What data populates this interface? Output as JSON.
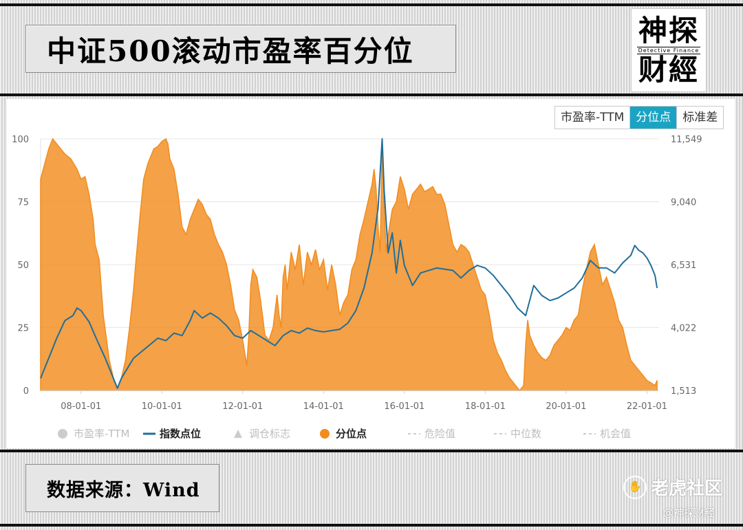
{
  "header": {
    "title": "中证500滚动市盈率百分位"
  },
  "logo": {
    "line1": "神探",
    "line2": "Detective Finance",
    "line3": "财經"
  },
  "tabs": [
    "市盈率-TTM",
    "分位点",
    "标准差"
  ],
  "active_tab": 1,
  "footer": {
    "source": "数据来源：Wind"
  },
  "watermark": {
    "brand": "老虎社区",
    "author": "@神探财经",
    "icon": "tiger-paw-icon"
  },
  "chart_data": {
    "type": "area",
    "x_ticks": [
      "08-01-01",
      "10-01-01",
      "12-01-01",
      "14-01-01",
      "16-01-01",
      "18-01-01",
      "20-01-01",
      "22-01-01"
    ],
    "y_left": {
      "ticks": [
        0,
        25,
        50,
        75,
        100
      ],
      "range": [
        0,
        100
      ]
    },
    "y_right": {
      "ticks": [
        "1,513",
        "4,022",
        "6,531",
        "9,040",
        "11,549"
      ],
      "range": [
        1513,
        11549
      ]
    },
    "legend": [
      {
        "name": "市盈率-TTM",
        "symbol": "circle",
        "color": "#cccccc"
      },
      {
        "name": "指数点位",
        "symbol": "line",
        "color": "#1f6e9a"
      },
      {
        "name": "调仓标志",
        "symbol": "triangle",
        "color": "#cccccc"
      },
      {
        "name": "分位点",
        "symbol": "circle",
        "color": "#f28c1e"
      },
      {
        "name": "危险值",
        "symbol": "dash",
        "color": "#cccccc"
      },
      {
        "name": "中位数",
        "symbol": "dash",
        "color": "#cccccc"
      },
      {
        "name": "机会值",
        "symbol": "dash",
        "color": "#cccccc"
      }
    ],
    "colors": {
      "percentile": "#f28c1e",
      "index": "#1f6e9a",
      "grid": "#e6e6e6"
    },
    "series": [
      {
        "name": "分位点",
        "axis": "left",
        "points": [
          [
            2007.0,
            84
          ],
          [
            2007.1,
            90
          ],
          [
            2007.2,
            96
          ],
          [
            2007.3,
            100
          ],
          [
            2007.45,
            97
          ],
          [
            2007.6,
            94
          ],
          [
            2007.75,
            92
          ],
          [
            2007.9,
            88
          ],
          [
            2008.0,
            84
          ],
          [
            2008.1,
            85
          ],
          [
            2008.2,
            78
          ],
          [
            2008.3,
            68
          ],
          [
            2008.35,
            58
          ],
          [
            2008.45,
            52
          ],
          [
            2008.55,
            30
          ],
          [
            2008.7,
            12
          ],
          [
            2008.8,
            5
          ],
          [
            2008.9,
            1
          ],
          [
            2009.0,
            5
          ],
          [
            2009.1,
            12
          ],
          [
            2009.2,
            25
          ],
          [
            2009.3,
            40
          ],
          [
            2009.35,
            50
          ],
          [
            2009.45,
            68
          ],
          [
            2009.55,
            84
          ],
          [
            2009.65,
            90
          ],
          [
            2009.8,
            96
          ],
          [
            2009.9,
            97
          ],
          [
            2010.0,
            99
          ],
          [
            2010.1,
            100
          ],
          [
            2010.15,
            98
          ],
          [
            2010.2,
            92
          ],
          [
            2010.3,
            88
          ],
          [
            2010.4,
            78
          ],
          [
            2010.5,
            65
          ],
          [
            2010.6,
            62
          ],
          [
            2010.7,
            68
          ],
          [
            2010.8,
            72
          ],
          [
            2010.9,
            76
          ],
          [
            2011.0,
            74
          ],
          [
            2011.1,
            70
          ],
          [
            2011.2,
            68
          ],
          [
            2011.3,
            62
          ],
          [
            2011.4,
            58
          ],
          [
            2011.5,
            55
          ],
          [
            2011.6,
            50
          ],
          [
            2011.7,
            42
          ],
          [
            2011.8,
            32
          ],
          [
            2011.9,
            28
          ],
          [
            2012.0,
            20
          ],
          [
            2012.1,
            10
          ],
          [
            2012.15,
            22
          ],
          [
            2012.2,
            42
          ],
          [
            2012.25,
            48
          ],
          [
            2012.35,
            45
          ],
          [
            2012.45,
            35
          ],
          [
            2012.55,
            22
          ],
          [
            2012.65,
            20
          ],
          [
            2012.75,
            25
          ],
          [
            2012.85,
            38
          ],
          [
            2012.9,
            30
          ],
          [
            2012.95,
            25
          ],
          [
            2013.0,
            45
          ],
          [
            2013.05,
            50
          ],
          [
            2013.1,
            40
          ],
          [
            2013.2,
            55
          ],
          [
            2013.3,
            48
          ],
          [
            2013.4,
            58
          ],
          [
            2013.5,
            42
          ],
          [
            2013.6,
            55
          ],
          [
            2013.7,
            50
          ],
          [
            2013.8,
            56
          ],
          [
            2013.9,
            48
          ],
          [
            2014.0,
            52
          ],
          [
            2014.1,
            40
          ],
          [
            2014.2,
            50
          ],
          [
            2014.3,
            42
          ],
          [
            2014.4,
            30
          ],
          [
            2014.5,
            35
          ],
          [
            2014.6,
            38
          ],
          [
            2014.7,
            48
          ],
          [
            2014.8,
            52
          ],
          [
            2014.9,
            62
          ],
          [
            2015.0,
            68
          ],
          [
            2015.1,
            75
          ],
          [
            2015.2,
            82
          ],
          [
            2015.25,
            88
          ],
          [
            2015.3,
            80
          ],
          [
            2015.35,
            65
          ],
          [
            2015.4,
            55
          ],
          [
            2015.45,
            100
          ],
          [
            2015.5,
            72
          ],
          [
            2015.55,
            55
          ],
          [
            2015.6,
            62
          ],
          [
            2015.7,
            72
          ],
          [
            2015.8,
            75
          ],
          [
            2015.9,
            85
          ],
          [
            2016.0,
            80
          ],
          [
            2016.1,
            72
          ],
          [
            2016.2,
            78
          ],
          [
            2016.3,
            80
          ],
          [
            2016.4,
            82
          ],
          [
            2016.5,
            79
          ],
          [
            2016.6,
            80
          ],
          [
            2016.7,
            81
          ],
          [
            2016.8,
            78
          ],
          [
            2016.9,
            78
          ],
          [
            2017.0,
            74
          ],
          [
            2017.1,
            66
          ],
          [
            2017.2,
            58
          ],
          [
            2017.3,
            55
          ],
          [
            2017.4,
            58
          ],
          [
            2017.5,
            57
          ],
          [
            2017.6,
            55
          ],
          [
            2017.7,
            50
          ],
          [
            2017.8,
            45
          ],
          [
            2017.9,
            40
          ],
          [
            2018.0,
            38
          ],
          [
            2018.1,
            30
          ],
          [
            2018.2,
            20
          ],
          [
            2018.3,
            15
          ],
          [
            2018.4,
            12
          ],
          [
            2018.5,
            8
          ],
          [
            2018.6,
            5
          ],
          [
            2018.7,
            3
          ],
          [
            2018.8,
            1
          ],
          [
            2018.85,
            0
          ],
          [
            2018.95,
            2
          ],
          [
            2019.0,
            18
          ],
          [
            2019.05,
            28
          ],
          [
            2019.1,
            22
          ],
          [
            2019.2,
            18
          ],
          [
            2019.3,
            15
          ],
          [
            2019.4,
            13
          ],
          [
            2019.5,
            12
          ],
          [
            2019.6,
            14
          ],
          [
            2019.7,
            18
          ],
          [
            2019.8,
            20
          ],
          [
            2019.9,
            22
          ],
          [
            2020.0,
            25
          ],
          [
            2020.1,
            24
          ],
          [
            2020.2,
            28
          ],
          [
            2020.3,
            30
          ],
          [
            2020.4,
            40
          ],
          [
            2020.5,
            48
          ],
          [
            2020.6,
            55
          ],
          [
            2020.7,
            58
          ],
          [
            2020.8,
            50
          ],
          [
            2020.9,
            42
          ],
          [
            2021.0,
            45
          ],
          [
            2021.1,
            40
          ],
          [
            2021.2,
            35
          ],
          [
            2021.3,
            28
          ],
          [
            2021.4,
            25
          ],
          [
            2021.5,
            18
          ],
          [
            2021.6,
            12
          ],
          [
            2021.7,
            10
          ],
          [
            2021.8,
            8
          ],
          [
            2021.9,
            6
          ],
          [
            2022.0,
            4
          ],
          [
            2022.1,
            3
          ],
          [
            2022.2,
            2
          ],
          [
            2022.25,
            4
          ]
        ]
      },
      {
        "name": "指数点位",
        "axis": "right",
        "points": [
          [
            2007.0,
            2000
          ],
          [
            2007.2,
            2800
          ],
          [
            2007.4,
            3600
          ],
          [
            2007.6,
            4300
          ],
          [
            2007.8,
            4500
          ],
          [
            2007.9,
            4800
          ],
          [
            2008.0,
            4700
          ],
          [
            2008.2,
            4250
          ],
          [
            2008.4,
            3500
          ],
          [
            2008.6,
            2800
          ],
          [
            2008.8,
            2000
          ],
          [
            2008.9,
            1600
          ],
          [
            2009.0,
            2000
          ],
          [
            2009.3,
            2800
          ],
          [
            2009.6,
            3200
          ],
          [
            2009.9,
            3600
          ],
          [
            2010.1,
            3500
          ],
          [
            2010.3,
            3800
          ],
          [
            2010.5,
            3700
          ],
          [
            2010.7,
            4300
          ],
          [
            2010.8,
            4700
          ],
          [
            2011.0,
            4400
          ],
          [
            2011.2,
            4600
          ],
          [
            2011.4,
            4400
          ],
          [
            2011.6,
            4100
          ],
          [
            2011.8,
            3700
          ],
          [
            2012.0,
            3600
          ],
          [
            2012.2,
            3900
          ],
          [
            2012.4,
            3700
          ],
          [
            2012.6,
            3500
          ],
          [
            2012.8,
            3300
          ],
          [
            2013.0,
            3700
          ],
          [
            2013.2,
            3900
          ],
          [
            2013.4,
            3800
          ],
          [
            2013.6,
            4000
          ],
          [
            2013.8,
            3900
          ],
          [
            2014.0,
            3850
          ],
          [
            2014.2,
            3900
          ],
          [
            2014.4,
            3950
          ],
          [
            2014.6,
            4200
          ],
          [
            2014.8,
            4700
          ],
          [
            2015.0,
            5600
          ],
          [
            2015.2,
            7000
          ],
          [
            2015.35,
            8800
          ],
          [
            2015.45,
            11549
          ],
          [
            2015.5,
            9500
          ],
          [
            2015.6,
            7000
          ],
          [
            2015.7,
            7800
          ],
          [
            2015.8,
            6200
          ],
          [
            2015.9,
            7500
          ],
          [
            2016.0,
            6500
          ],
          [
            2016.2,
            5700
          ],
          [
            2016.4,
            6200
          ],
          [
            2016.6,
            6300
          ],
          [
            2016.8,
            6400
          ],
          [
            2017.0,
            6350
          ],
          [
            2017.2,
            6300
          ],
          [
            2017.4,
            6000
          ],
          [
            2017.6,
            6300
          ],
          [
            2017.8,
            6500
          ],
          [
            2018.0,
            6400
          ],
          [
            2018.2,
            6100
          ],
          [
            2018.4,
            5700
          ],
          [
            2018.6,
            5300
          ],
          [
            2018.8,
            4800
          ],
          [
            2019.0,
            4500
          ],
          [
            2019.2,
            5700
          ],
          [
            2019.4,
            5300
          ],
          [
            2019.6,
            5100
          ],
          [
            2019.8,
            5200
          ],
          [
            2020.0,
            5400
          ],
          [
            2020.2,
            5600
          ],
          [
            2020.4,
            6000
          ],
          [
            2020.6,
            6700
          ],
          [
            2020.8,
            6400
          ],
          [
            2021.0,
            6400
          ],
          [
            2021.2,
            6200
          ],
          [
            2021.4,
            6600
          ],
          [
            2021.6,
            6900
          ],
          [
            2021.7,
            7300
          ],
          [
            2021.8,
            7100
          ],
          [
            2021.9,
            7000
          ],
          [
            2022.0,
            6800
          ],
          [
            2022.1,
            6500
          ],
          [
            2022.2,
            6100
          ],
          [
            2022.25,
            5600
          ]
        ]
      }
    ]
  }
}
